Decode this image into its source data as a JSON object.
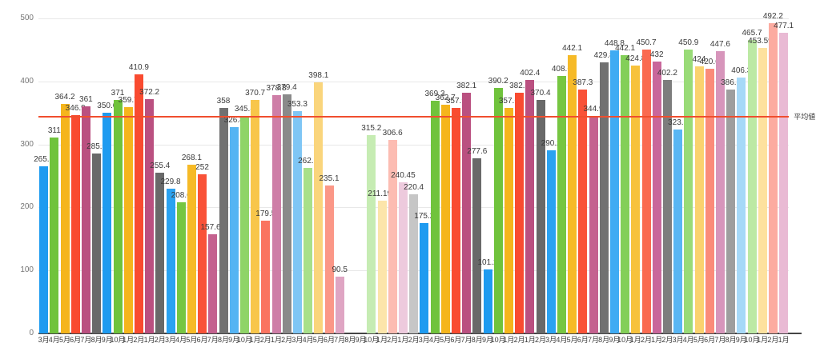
{
  "chart_data": {
    "type": "bar",
    "title": "",
    "xlabel": "",
    "ylabel": "",
    "ylim": [
      0,
      500
    ],
    "yticks": [
      0,
      100,
      200,
      300,
      400,
      500
    ],
    "grid": true,
    "legend": "none",
    "average_line": {
      "label": "平均値",
      "color": "#f04e2e"
    },
    "bars": [
      {
        "month": "3月",
        "value": 265.5,
        "color": "#1e9bf0"
      },
      {
        "month": "4月",
        "value": 311,
        "color": "#70c33c"
      },
      {
        "month": "5月",
        "value": 364.2,
        "color": "#f5b51c"
      },
      {
        "month": "6月",
        "value": 346.9,
        "color": "#f94b30"
      },
      {
        "month": "7月",
        "value": 361,
        "color": "#ba5080"
      },
      {
        "month": "8月",
        "value": 285.6,
        "color": "#696969"
      },
      {
        "month": "9月",
        "value": 350.6,
        "color": "#1e9bf0"
      },
      {
        "month": "10月",
        "value": 371,
        "color": "#70c33c"
      },
      {
        "month": "1月",
        "value": 359.7,
        "color": "#f5b51c"
      },
      {
        "month": "2月",
        "value": 410.9,
        "color": "#f94b30"
      },
      {
        "month": "1月",
        "value": 372.2,
        "color": "#ba5080"
      },
      {
        "month": "2月",
        "value": 255.4,
        "color": "#696969"
      },
      {
        "month": "3月",
        "value": 229.8,
        "color": "#2aa2f1"
      },
      {
        "month": "4月",
        "value": 208.6,
        "color": "#76c641"
      },
      {
        "month": "5月",
        "value": 268.1,
        "color": "#f6ba27"
      },
      {
        "month": "6月",
        "value": 252,
        "color": "#f95238"
      },
      {
        "month": "7月",
        "value": 157.65,
        "color": "#c4628f"
      },
      {
        "month": "8月",
        "value": 358,
        "color": "#717171"
      },
      {
        "month": "9月",
        "value": 326.8,
        "color": "#55b4f3"
      },
      {
        "month": "10月",
        "value": 345.8,
        "color": "#8fd467"
      },
      {
        "month": "1月",
        "value": 370.7,
        "color": "#f8c64a"
      },
      {
        "month": "2月",
        "value": 179.5,
        "color": "#fa7460"
      },
      {
        "month": "1月",
        "value": 378.8,
        "color": "#ce7ea7"
      },
      {
        "month": "2月",
        "value": 379.4,
        "color": "#8a8a8a"
      },
      {
        "month": "3月",
        "value": 353.3,
        "color": "#7fc6f5"
      },
      {
        "month": "4月",
        "value": 262.6,
        "color": "#a8e08a"
      },
      {
        "month": "5月",
        "value": 398.1,
        "color": "#fad57c"
      },
      {
        "month": "6月",
        "value": 235.1,
        "color": "#fb9787"
      },
      {
        "month": "7月",
        "value": 90.5,
        "color": "#dfa5c3"
      },
      {
        "month": "8月",
        "value": null,
        "color": null
      },
      {
        "month": "9月",
        "value": null,
        "color": null
      },
      {
        "month": "10月",
        "value": 315.2,
        "color": "#c6ecb3"
      },
      {
        "month": "1月",
        "value": 211.195,
        "color": "#fce5aa"
      },
      {
        "month": "2月",
        "value": 306.6,
        "color": "#fcbcb2"
      },
      {
        "month": "1月",
        "value": 240.45,
        "color": "#edcadd"
      },
      {
        "month": "2月",
        "value": 220.4,
        "color": "#c6c6c6"
      },
      {
        "month": "3月",
        "value": 175.2,
        "color": "#1e9bf0"
      },
      {
        "month": "4月",
        "value": 369.3,
        "color": "#70c33c"
      },
      {
        "month": "5月",
        "value": 362.7,
        "color": "#f5b51c"
      },
      {
        "month": "6月",
        "value": 357.9,
        "color": "#f94b30"
      },
      {
        "month": "7月",
        "value": 382.1,
        "color": "#ba5080"
      },
      {
        "month": "8月",
        "value": 277.6,
        "color": "#696969"
      },
      {
        "month": "9月",
        "value": 101.2,
        "color": "#1e9bf0"
      },
      {
        "month": "10月",
        "value": 390.2,
        "color": "#70c33c"
      },
      {
        "month": "1月",
        "value": 357.6,
        "color": "#f5b51c"
      },
      {
        "month": "2月",
        "value": 382.5,
        "color": "#f94b30"
      },
      {
        "month": "1月",
        "value": 402.4,
        "color": "#ba5080"
      },
      {
        "month": "2月",
        "value": 370.4,
        "color": "#696969"
      },
      {
        "month": "3月",
        "value": 290.2,
        "color": "#2aa2f1"
      },
      {
        "month": "4月",
        "value": 408.6,
        "color": "#76c641"
      },
      {
        "month": "5月",
        "value": 442.1,
        "color": "#f6ba27"
      },
      {
        "month": "6月",
        "value": 387.3,
        "color": "#f95238"
      },
      {
        "month": "7月",
        "value": 344.9,
        "color": "#c4628f"
      },
      {
        "month": "8月",
        "value": 429.8,
        "color": "#717171"
      },
      {
        "month": "9月",
        "value": 448.8,
        "color": "#3fabf3"
      },
      {
        "month": "10月",
        "value": 442.1,
        "color": "#83cf58"
      },
      {
        "month": "1月",
        "value": 424.8,
        "color": "#f7c23c"
      },
      {
        "month": "2月",
        "value": 450.7,
        "color": "#fa6a50"
      },
      {
        "month": "1月",
        "value": 432,
        "color": "#c9679b"
      },
      {
        "month": "2月",
        "value": 402.2,
        "color": "#7d7d7d"
      },
      {
        "month": "3月",
        "value": 323.5,
        "color": "#58b6f3"
      },
      {
        "month": "4月",
        "value": 450.9,
        "color": "#99db77"
      },
      {
        "month": "5月",
        "value": 424,
        "color": "#fad26e"
      },
      {
        "month": "6月",
        "value": 420.6,
        "color": "#fb8b79"
      },
      {
        "month": "7月",
        "value": 447.6,
        "color": "#d795bb"
      },
      {
        "month": "8月",
        "value": 386.8,
        "color": "#9e9e9e"
      },
      {
        "month": "9月",
        "value": 406.3,
        "color": "#a6d9f8"
      },
      {
        "month": "10月",
        "value": 465.7,
        "color": "#bce9a4"
      },
      {
        "month": "1月",
        "value": 453.595,
        "color": "#fde19e"
      },
      {
        "month": "2月",
        "value": 492.2,
        "color": "#fcaba0"
      },
      {
        "month": "1月",
        "value": 477.1,
        "color": "#e9bad4"
      }
    ]
  }
}
